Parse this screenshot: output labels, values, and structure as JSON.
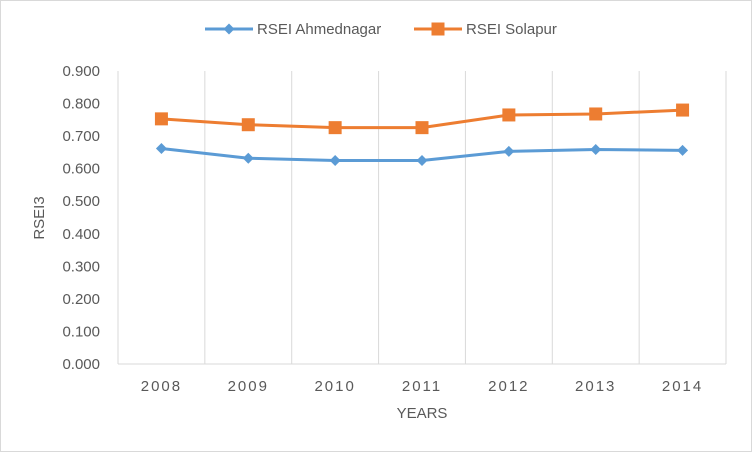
{
  "chart_data": {
    "type": "line",
    "title": "",
    "xlabel": "YEARS",
    "ylabel": "RSEI3",
    "categories": [
      "2008",
      "2009",
      "2010",
      "2011",
      "2012",
      "2013",
      "2014"
    ],
    "ylim": [
      0,
      0.9
    ],
    "yticks": [
      "0.000",
      "0.100",
      "0.200",
      "0.300",
      "0.400",
      "0.500",
      "0.600",
      "0.700",
      "0.800",
      "0.900"
    ],
    "grid": "vertical",
    "legend_position": "top",
    "series": [
      {
        "name": "RSEI Ahmednagar",
        "color": "#5b9bd5",
        "marker": "diamond",
        "values": [
          0.662,
          0.632,
          0.625,
          0.625,
          0.653,
          0.659,
          0.656
        ]
      },
      {
        "name": "RSEI Solapur",
        "color": "#ed7d31",
        "marker": "square",
        "values": [
          0.753,
          0.735,
          0.726,
          0.726,
          0.765,
          0.768,
          0.78
        ]
      }
    ]
  }
}
